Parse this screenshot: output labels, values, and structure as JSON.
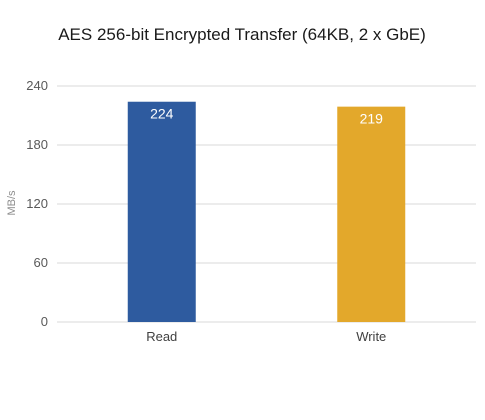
{
  "chart_data": {
    "type": "bar",
    "title": "AES 256-bit Encrypted Transfer (64KB, 2 x GbE)",
    "xlabel": "",
    "ylabel": "MB/s",
    "categories": [
      "Read",
      "Write"
    ],
    "values": [
      224,
      219
    ],
    "data_labels": [
      "224",
      "219"
    ],
    "colors": [
      "#2e5b9f",
      "#e3a82b"
    ],
    "ylim": [
      0,
      240
    ],
    "yticks": [
      0,
      60,
      120,
      180,
      240
    ],
    "ytick_labels": [
      "0",
      "60",
      "120",
      "180",
      "240"
    ],
    "grid": true,
    "legend": "none"
  }
}
